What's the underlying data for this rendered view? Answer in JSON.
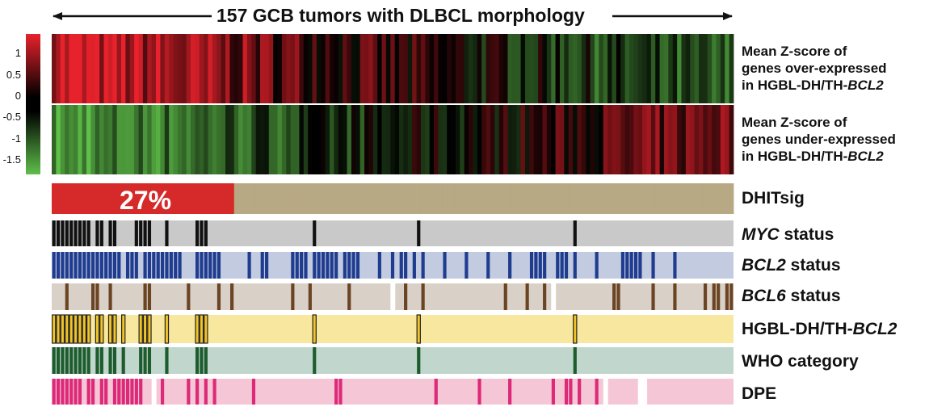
{
  "title": "157 GCB tumors with DLBCL morphology",
  "n_tumors": 157,
  "colorscale": {
    "ticks": [
      "1",
      "0.5",
      "0",
      "-0.5",
      "-1",
      "-1.5"
    ],
    "high_color": "#e8222c",
    "mid_color": "#000000",
    "low_color": "#5fbf4a"
  },
  "labels": {
    "over_l1": "Mean Z-score of",
    "over_l2": "genes over-expressed",
    "over_l3_pre": "in HGBL-DH/TH-",
    "over_l3_it": "BCL2",
    "under_l1": "Mean Z-score of",
    "under_l2": "genes under-expressed",
    "under_l3_pre": "in HGBL-DH/TH-",
    "under_l3_it": "BCL2",
    "dhitsig": "DHITsig",
    "myc_it": "MYC",
    "myc_rest": " status",
    "bcl2_it": "BCL2",
    "bcl2_rest": " status",
    "bcl6_it": "BCL6",
    "bcl6_rest": " status",
    "hgbl": "HGBL-DH/TH-",
    "hgbl_it": "BCL2",
    "who": "WHO category",
    "dpe": "DPE"
  },
  "dhitsig_pct": "27%",
  "tracks": {
    "dhitsig": {
      "pos_color": "#d62a2a",
      "neg_color": "#b7a983",
      "positive_fraction": 0.27
    },
    "myc": {
      "on_color": "#111111",
      "off_color": "#c9c9c9",
      "positive": [
        0,
        1,
        2,
        3,
        4,
        5,
        6,
        7,
        8,
        10,
        11,
        13,
        14,
        19,
        20,
        21,
        22,
        26,
        33,
        34,
        35,
        60,
        84,
        120
      ]
    },
    "bcl2": {
      "on_color": "#1f3c8f",
      "off_color": "#c2cbe0",
      "positive": [
        0,
        1,
        2,
        3,
        4,
        5,
        6,
        7,
        8,
        9,
        10,
        11,
        12,
        13,
        14,
        15,
        17,
        18,
        19,
        21,
        22,
        23,
        24,
        25,
        26,
        27,
        28,
        29,
        33,
        34,
        35,
        36,
        37,
        38,
        45,
        48,
        49,
        55,
        56,
        57,
        58,
        60,
        61,
        62,
        63,
        64,
        65,
        67,
        68,
        69,
        70,
        75,
        78,
        80,
        81,
        83,
        85,
        90,
        95,
        100,
        105,
        110,
        111,
        112,
        113,
        116,
        117,
        118,
        120,
        125,
        131,
        132,
        133,
        134,
        135,
        138,
        143
      ]
    },
    "bcl6": {
      "on_color": "#6b4423",
      "off_color": "#d9d0c8",
      "gap_color": "#ffffff",
      "positive": [
        3,
        9,
        10,
        13,
        21,
        22,
        31,
        38,
        41,
        55,
        59,
        68,
        81,
        85,
        104,
        109,
        113,
        129,
        130,
        138,
        143,
        150,
        152,
        153,
        155,
        156
      ],
      "missing": [
        78,
        115
      ]
    },
    "hgbl": {
      "on_color": "#f1c42a",
      "off_color": "#f8e79e",
      "positive": [
        0,
        1,
        2,
        3,
        4,
        5,
        6,
        7,
        8,
        10,
        11,
        13,
        14,
        16,
        20,
        21,
        22,
        26,
        33,
        34,
        35,
        60,
        84,
        120
      ]
    },
    "who": {
      "on_color": "#1e5c2e",
      "off_color": "#c1d7ce",
      "positive": [
        0,
        1,
        2,
        3,
        4,
        5,
        6,
        7,
        8,
        10,
        11,
        13,
        14,
        16,
        20,
        21,
        22,
        26,
        33,
        34,
        35,
        60,
        84,
        120
      ]
    },
    "dpe": {
      "on_color": "#dd2a78",
      "off_color": "#f5c6d6",
      "gap_color": "#ffffff",
      "positive": [
        0,
        1,
        2,
        3,
        4,
        5,
        6,
        8,
        9,
        11,
        12,
        14,
        15,
        16,
        17,
        18,
        19,
        20,
        25,
        31,
        33,
        35,
        37,
        46,
        65,
        66,
        88,
        98,
        105,
        115,
        118,
        119,
        121,
        125
      ],
      "missing": [
        23,
        127,
        135,
        136
      ]
    }
  }
}
